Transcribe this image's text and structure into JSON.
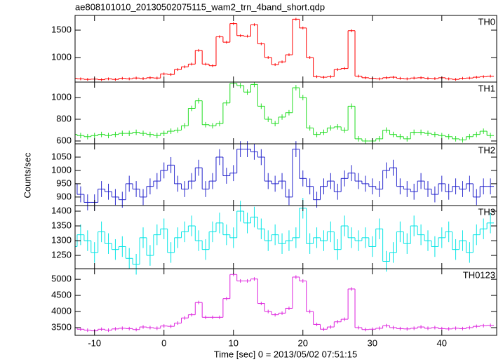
{
  "chart_data": {
    "type": "step",
    "title": "ae808101010_20130502075115_wam2_trn_4band_short.qdp",
    "x_label": "Time [sec] 0 = 2013/05/02 07:51:15",
    "y_label": "Counts/sec",
    "xlim": [
      -12.8,
      47.9
    ],
    "xticks": [
      -10,
      0,
      10,
      20,
      30,
      40
    ],
    "x": [
      -13,
      -12,
      -11,
      -10,
      -9,
      -8,
      -7,
      -6,
      -5,
      -4,
      -3,
      -2,
      -1,
      0,
      1,
      2,
      3,
      4,
      5,
      6,
      7,
      8,
      9,
      10,
      11,
      12,
      13,
      14,
      15,
      16,
      17,
      18,
      19,
      20,
      21,
      22,
      23,
      24,
      25,
      26,
      27,
      28,
      29,
      30,
      31,
      32,
      33,
      34,
      35,
      36,
      37,
      38,
      39,
      40,
      41,
      42,
      43,
      44,
      45,
      46,
      47
    ],
    "series": [
      {
        "name": "TH0",
        "color": "#ff0000",
        "error": 25,
        "ylim": [
          551,
          1769
        ],
        "yticks": [
          1000,
          1500
        ],
        "values": [
          620,
          610,
          600,
          605,
          595,
          610,
          600,
          620,
          610,
          625,
          615,
          630,
          625,
          700,
          690,
          780,
          830,
          880,
          1130,
          880,
          850,
          1380,
          1280,
          1620,
          1400,
          1390,
          1600,
          1250,
          1000,
          870,
          920,
          1050,
          1700,
          1540,
          1000,
          650,
          640,
          650,
          780,
          800,
          1490,
          660,
          630,
          620,
          610,
          630,
          640,
          620,
          610,
          625,
          630,
          620,
          615,
          630,
          610,
          600,
          620,
          625,
          640,
          650,
          660
        ]
      },
      {
        "name": "TH1",
        "color": "#22dd22",
        "error": 25,
        "ylim": [
          574,
          1142
        ],
        "yticks": [
          600,
          800,
          1000
        ],
        "values": [
          660,
          650,
          640,
          650,
          660,
          650,
          660,
          670,
          670,
          680,
          670,
          660,
          650,
          670,
          690,
          700,
          740,
          900,
          970,
          750,
          740,
          760,
          950,
          1130,
          1110,
          1050,
          1120,
          920,
          800,
          760,
          820,
          860,
          1090,
          1000,
          720,
          660,
          680,
          720,
          730,
          700,
          920,
          620,
          600,
          600,
          620,
          700,
          660,
          640,
          620,
          680,
          680,
          670,
          660,
          650,
          640,
          620,
          610,
          640,
          660,
          690,
          650
        ]
      },
      {
        "name": "TH2",
        "color": "#2222cc",
        "error": 30,
        "ylim": [
          868,
          1100
        ],
        "yticks": [
          900,
          950,
          1000,
          1050
        ],
        "values": [
          950,
          910,
          880,
          880,
          930,
          920,
          900,
          890,
          950,
          930,
          900,
          940,
          960,
          1000,
          1020,
          950,
          930,
          960,
          1010,
          930,
          960,
          1050,
          980,
          990,
          1080,
          1080,
          1070,
          1050,
          960,
          950,
          960,
          900,
          1080,
          970,
          940,
          890,
          940,
          960,
          920,
          970,
          990,
          960,
          950,
          940,
          930,
          1000,
          1010,
          940,
          930,
          920,
          960,
          930,
          910,
          950,
          920,
          940,
          930,
          950,
          900,
          940,
          940
        ]
      },
      {
        "name": "TH3",
        "color": "#00e5e5",
        "error": 35,
        "ylim": [
          1205,
          1419
        ],
        "yticks": [
          1250,
          1300,
          1350,
          1400
        ],
        "values": [
          1280,
          1320,
          1300,
          1260,
          1330,
          1290,
          1270,
          1280,
          1240,
          1220,
          1310,
          1250,
          1320,
          1340,
          1260,
          1310,
          1330,
          1350,
          1300,
          1270,
          1330,
          1360,
          1320,
          1310,
          1400,
          1360,
          1380,
          1340,
          1300,
          1320,
          1290,
          1300,
          1310,
          1410,
          1290,
          1310,
          1300,
          1330,
          1270,
          1350,
          1310,
          1300,
          1310,
          1280,
          1340,
          1230,
          1260,
          1330,
          1290,
          1350,
          1320,
          1300,
          1280,
          1310,
          1330,
          1270,
          1300,
          1260,
          1320,
          1340,
          1360
        ]
      },
      {
        "name": "TH0123",
        "color": "#dd22dd",
        "error": 55,
        "ylim": [
          3260,
          5330
        ],
        "yticks": [
          3500,
          4000,
          4500,
          5000
        ],
        "values": [
          3500,
          3450,
          3420,
          3400,
          3450,
          3420,
          3460,
          3480,
          3470,
          3440,
          3520,
          3500,
          3480,
          3550,
          3540,
          3640,
          3800,
          3900,
          4280,
          3820,
          3820,
          3820,
          4400,
          5150,
          4950,
          4950,
          5010,
          4250,
          4000,
          3900,
          3950,
          4100,
          5070,
          4950,
          4000,
          3600,
          3450,
          3520,
          3680,
          3760,
          4700,
          3500,
          3440,
          3450,
          3480,
          3560,
          3500,
          3470,
          3460,
          3480,
          3520,
          3480,
          3500,
          3470,
          3460,
          3480,
          3470,
          3500,
          3540,
          3560,
          3570
        ]
      }
    ]
  }
}
